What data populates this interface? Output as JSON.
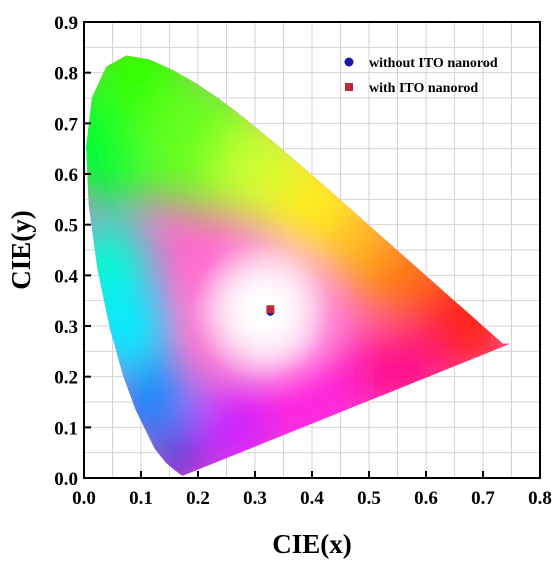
{
  "chart_data": {
    "type": "scatter",
    "xlabel": "CIE(x)",
    "ylabel": "CIE(y)",
    "xlim": [
      0.0,
      0.8
    ],
    "ylim": [
      0.0,
      0.9
    ],
    "xticks": [
      "0.0",
      "0.1",
      "0.2",
      "0.3",
      "0.4",
      "0.5",
      "0.6",
      "0.7",
      "0.8"
    ],
    "yticks": [
      "0.0",
      "0.1",
      "0.2",
      "0.3",
      "0.4",
      "0.5",
      "0.6",
      "0.7",
      "0.8",
      "0.9"
    ],
    "grid": true,
    "legend_position": "top-right",
    "series": [
      {
        "name": "without ITO nanorod",
        "marker": "circle",
        "color": "#1a1aa6",
        "x": [
          0.327
        ],
        "y": [
          0.328
        ]
      },
      {
        "name": "with ITO nanorod",
        "marker": "square",
        "color": "#c0283a",
        "x": [
          0.327
        ],
        "y": [
          0.333
        ]
      }
    ]
  }
}
